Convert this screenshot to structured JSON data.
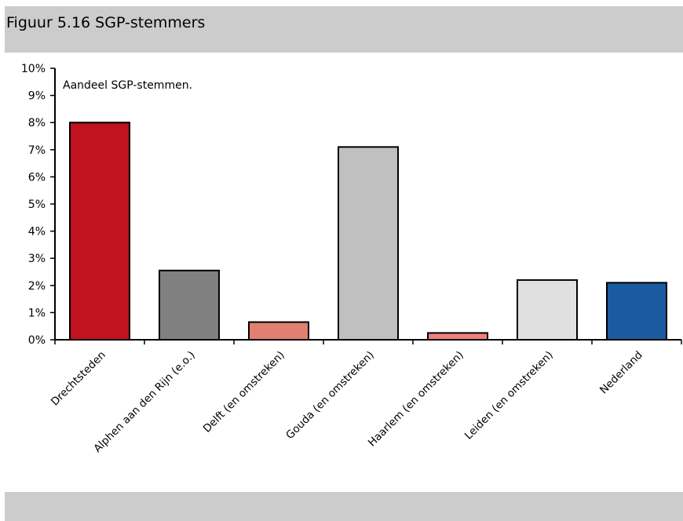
{
  "figure_title": "Figuur 5.16 SGP-stemmers",
  "chart_data": {
    "type": "bar",
    "annotation": "Aandeel SGP-stemmen.",
    "categories": [
      "Drechtsteden",
      "Alphen aan den Rijn (e.o.)",
      "Delft (en omstreken)",
      "Gouda (en omstreken)",
      "Haarlem (en omstreken)",
      "Leiden (en omstreken)",
      "Nederland"
    ],
    "values": [
      8.0,
      2.55,
      0.65,
      7.1,
      0.25,
      2.2,
      2.1
    ],
    "colors": [
      "#c0121f",
      "#808080",
      "#e08070",
      "#c0c0c0",
      "#f08080",
      "#e0e0e0",
      "#1a5aa0"
    ],
    "ylim": [
      0,
      10
    ],
    "yticks": [
      "0%",
      "1%",
      "2%",
      "3%",
      "4%",
      "5%",
      "6%",
      "7%",
      "8%",
      "9%",
      "10%"
    ],
    "grid": false
  }
}
